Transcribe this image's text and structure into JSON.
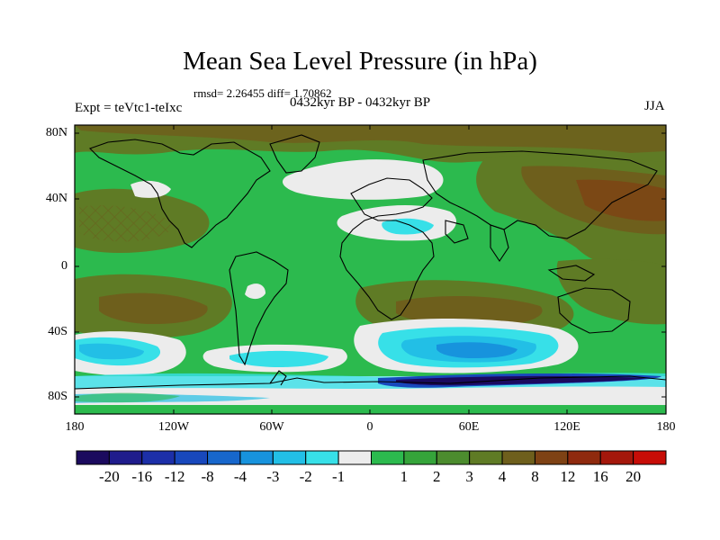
{
  "title": "Mean Sea Level Pressure (in hPa)",
  "stats": "rmsd= 2.26455 diff= 1.70862",
  "expt": "Expt = teVtc1-teIxc",
  "period": "0432kyr BP - 0432kyr BP",
  "season": "JJA",
  "y_axis": {
    "ticks": [
      "80N",
      "40N",
      "0",
      "40S",
      "80S"
    ],
    "values": [
      80,
      40,
      0,
      -40,
      -80
    ]
  },
  "x_axis": {
    "ticks": [
      "180",
      "120W",
      "60W",
      "0",
      "60E",
      "120E",
      "180"
    ],
    "values": [
      -180,
      -120,
      -60,
      0,
      60,
      120,
      180
    ]
  },
  "colorbar": {
    "colors": [
      "#1b0a5e",
      "#1f1c8c",
      "#1c2fa8",
      "#1848bc",
      "#1767cc",
      "#1793dd",
      "#22bfe6",
      "#37e0e8",
      "#ececec",
      "#2cba4e",
      "#35a43a",
      "#4c8c2e",
      "#5f7b25",
      "#6e5f1c",
      "#7e4214",
      "#8f2a0e",
      "#a4170b",
      "#c70d07"
    ],
    "labels": [
      "-20",
      "-16",
      "-12",
      "-8",
      "-4",
      "-3",
      "-2",
      "-1",
      "1",
      "2",
      "3",
      "4",
      "8",
      "12",
      "16",
      "20"
    ]
  }
}
